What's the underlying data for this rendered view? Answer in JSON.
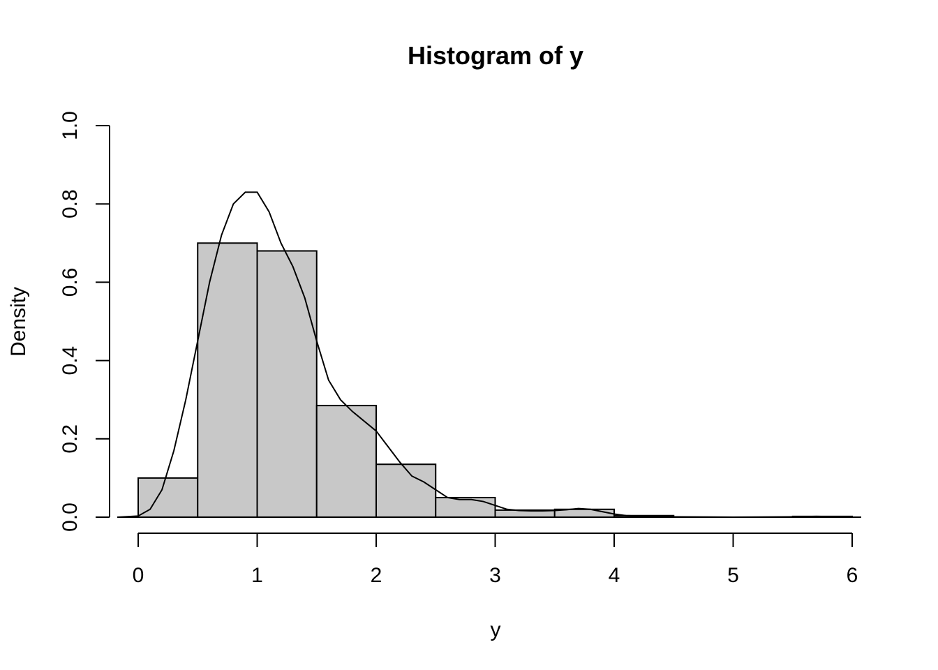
{
  "chart_data": {
    "type": "bar",
    "title": "Histogram of y",
    "xlabel": "y",
    "ylabel": "Density",
    "xlim": [
      0,
      6
    ],
    "ylim": [
      0,
      1.0
    ],
    "x_ticks": [
      "0",
      "1",
      "2",
      "3",
      "4",
      "5",
      "6"
    ],
    "y_ticks": [
      "0.0",
      "0.2",
      "0.4",
      "0.6",
      "0.8",
      "1.0"
    ],
    "bins": [
      {
        "start": 0.0,
        "end": 0.5,
        "density": 0.1
      },
      {
        "start": 0.5,
        "end": 1.0,
        "density": 0.7
      },
      {
        "start": 1.0,
        "end": 1.5,
        "density": 0.68
      },
      {
        "start": 1.5,
        "end": 2.0,
        "density": 0.285
      },
      {
        "start": 2.0,
        "end": 2.5,
        "density": 0.135
      },
      {
        "start": 2.5,
        "end": 3.0,
        "density": 0.05
      },
      {
        "start": 3.0,
        "end": 3.5,
        "density": 0.018
      },
      {
        "start": 3.5,
        "end": 4.0,
        "density": 0.02
      },
      {
        "start": 4.0,
        "end": 4.5,
        "density": 0.004
      },
      {
        "start": 4.5,
        "end": 5.0,
        "density": 0.0
      },
      {
        "start": 5.0,
        "end": 5.5,
        "density": 0.0
      },
      {
        "start": 5.5,
        "end": 6.0,
        "density": 0.002
      }
    ],
    "density_curve": [
      [
        -0.17,
        0.0
      ],
      [
        0.0,
        0.003
      ],
      [
        0.1,
        0.02
      ],
      [
        0.2,
        0.07
      ],
      [
        0.3,
        0.17
      ],
      [
        0.4,
        0.3
      ],
      [
        0.5,
        0.45
      ],
      [
        0.6,
        0.6
      ],
      [
        0.7,
        0.72
      ],
      [
        0.8,
        0.8
      ],
      [
        0.9,
        0.83
      ],
      [
        1.0,
        0.83
      ],
      [
        1.1,
        0.78
      ],
      [
        1.2,
        0.7
      ],
      [
        1.3,
        0.64
      ],
      [
        1.4,
        0.56
      ],
      [
        1.5,
        0.45
      ],
      [
        1.6,
        0.35
      ],
      [
        1.7,
        0.3
      ],
      [
        1.8,
        0.27
      ],
      [
        1.9,
        0.245
      ],
      [
        2.0,
        0.22
      ],
      [
        2.1,
        0.18
      ],
      [
        2.2,
        0.14
      ],
      [
        2.3,
        0.105
      ],
      [
        2.4,
        0.09
      ],
      [
        2.5,
        0.07
      ],
      [
        2.6,
        0.05
      ],
      [
        2.7,
        0.045
      ],
      [
        2.8,
        0.045
      ],
      [
        2.9,
        0.04
      ],
      [
        3.0,
        0.03
      ],
      [
        3.1,
        0.02
      ],
      [
        3.2,
        0.017
      ],
      [
        3.3,
        0.016
      ],
      [
        3.4,
        0.016
      ],
      [
        3.5,
        0.017
      ],
      [
        3.6,
        0.019
      ],
      [
        3.7,
        0.022
      ],
      [
        3.8,
        0.02
      ],
      [
        3.9,
        0.014
      ],
      [
        4.0,
        0.008
      ],
      [
        4.1,
        0.004
      ],
      [
        4.3,
        0.002
      ],
      [
        4.5,
        0.001
      ],
      [
        5.0,
        0.0
      ],
      [
        5.5,
        0.001
      ],
      [
        5.7,
        0.002
      ],
      [
        5.9,
        0.001
      ],
      [
        6.0,
        0.0
      ]
    ],
    "grid": false
  }
}
